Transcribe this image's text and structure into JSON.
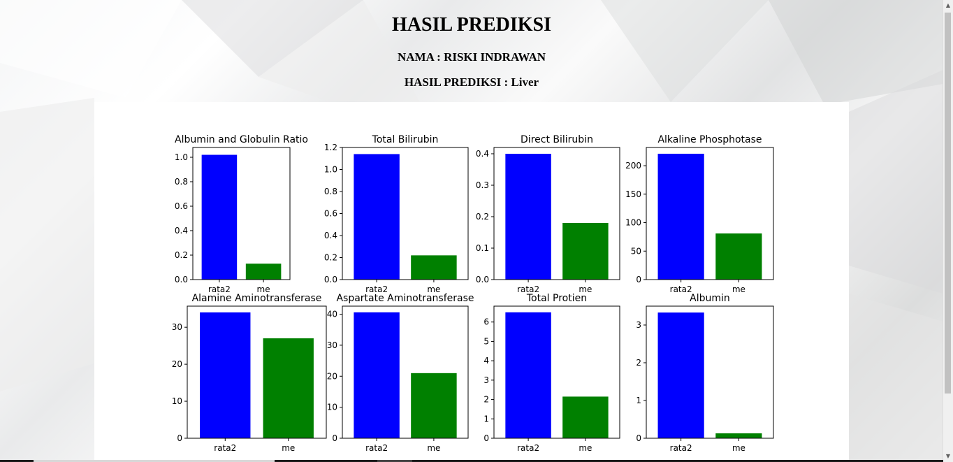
{
  "header": {
    "title": "HASIL PREDIKSI",
    "name_line": "NAMA : RISKI INDRAWAN",
    "prediction_line": "HASIL PREDIKSI : Liver"
  },
  "colors": {
    "rata2": "#0000ff",
    "me": "#008000"
  },
  "chart_data": [
    {
      "type": "bar",
      "title": "Albumin and Globulin Ratio",
      "categories": [
        "rata2",
        "me"
      ],
      "values": [
        1.02,
        0.13
      ],
      "ylim": [
        0,
        1.08
      ],
      "yticks": [
        "0.0",
        "0.2",
        "0.4",
        "0.6",
        "0.8",
        "1.0"
      ],
      "ytick_values": [
        0,
        0.2,
        0.4,
        0.6,
        0.8,
        1.0
      ]
    },
    {
      "type": "bar",
      "title": "Total Bilirubin",
      "categories": [
        "rata2",
        "me"
      ],
      "values": [
        1.14,
        0.22
      ],
      "ylim": [
        0,
        1.2
      ],
      "yticks": [
        "0.0",
        "0.2",
        "0.4",
        "0.6",
        "0.8",
        "1.0",
        "1.2"
      ],
      "ytick_values": [
        0,
        0.2,
        0.4,
        0.6,
        0.8,
        1.0,
        1.2
      ]
    },
    {
      "type": "bar",
      "title": "Direct Bilirubin",
      "categories": [
        "rata2",
        "me"
      ],
      "values": [
        0.4,
        0.18
      ],
      "ylim": [
        0,
        0.42
      ],
      "yticks": [
        "0.0",
        "0.1",
        "0.2",
        "0.3",
        "0.4"
      ],
      "ytick_values": [
        0,
        0.1,
        0.2,
        0.3,
        0.4
      ]
    },
    {
      "type": "bar",
      "title": "Alkaline Phosphotase",
      "categories": [
        "rata2",
        "me"
      ],
      "values": [
        221,
        81
      ],
      "ylim": [
        0,
        232
      ],
      "yticks": [
        "0",
        "50",
        "100",
        "150",
        "200"
      ],
      "ytick_values": [
        0,
        50,
        100,
        150,
        200
      ]
    },
    {
      "type": "bar",
      "title": "Alamine Aminotransferase",
      "categories": [
        "rata2",
        "me"
      ],
      "values": [
        34,
        27
      ],
      "ylim": [
        0,
        35.7
      ],
      "yticks": [
        "0",
        "10",
        "20",
        "30"
      ],
      "ytick_values": [
        0,
        10,
        20,
        30
      ]
    },
    {
      "type": "bar",
      "title": "Aspartate Aminotransferase",
      "categories": [
        "rata2",
        "me"
      ],
      "values": [
        40.6,
        21
      ],
      "ylim": [
        0,
        42.6
      ],
      "yticks": [
        "0",
        "10",
        "20",
        "30",
        "40"
      ],
      "ytick_values": [
        0,
        10,
        20,
        30,
        40
      ]
    },
    {
      "type": "bar",
      "title": "Total Protien",
      "categories": [
        "rata2",
        "me"
      ],
      "values": [
        6.5,
        2.15
      ],
      "ylim": [
        0,
        6.82
      ],
      "yticks": [
        "0",
        "1",
        "2",
        "3",
        "4",
        "5",
        "6"
      ],
      "ytick_values": [
        0,
        1,
        2,
        3,
        4,
        5,
        6
      ]
    },
    {
      "type": "bar",
      "title": "Albumin",
      "categories": [
        "rata2",
        "me"
      ],
      "values": [
        3.33,
        0.13
      ],
      "ylim": [
        0,
        3.5
      ],
      "yticks": [
        "0",
        "1",
        "2",
        "3"
      ],
      "ytick_values": [
        0,
        1,
        2,
        3
      ]
    }
  ]
}
